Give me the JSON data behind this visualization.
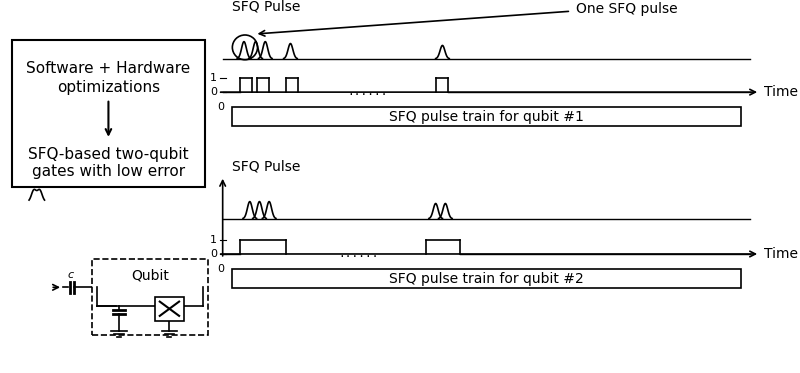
{
  "bg_color": "#ffffff",
  "text_color": "#000000",
  "box1_text_line1": "Software + Hardware",
  "box1_text_line2": "optimizations",
  "box1_text_line3": "SFQ-based two-qubit",
  "box1_text_line4": "gates with low error",
  "arrow_label": "↓",
  "sfq_ylabel": "SFQ Pulse",
  "time_label": "Time",
  "label1": "SFQ pulse train for qubit #1",
  "label2": "SFQ pulse train for qubit #2",
  "one_sfq_label": "One SFQ pulse",
  "qubit_label": "Qubit",
  "cap_label": "c"
}
